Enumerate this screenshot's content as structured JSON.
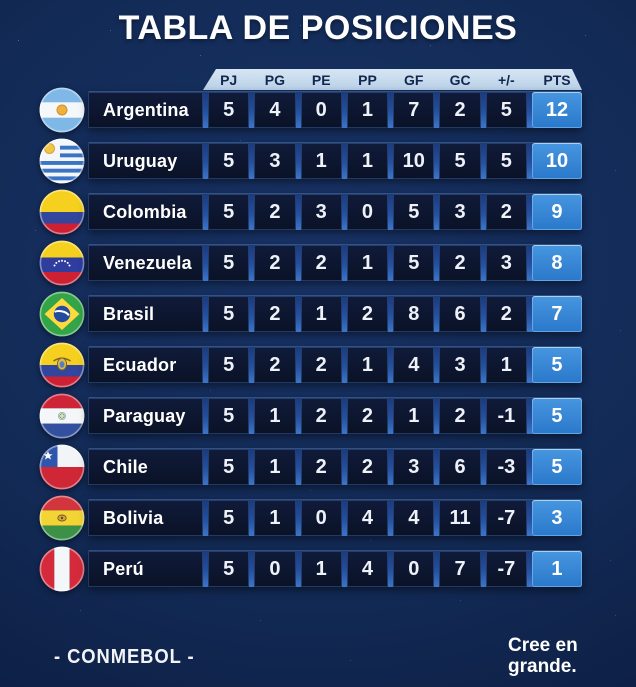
{
  "title": "TABLA DE POSICIONES",
  "chart_data": {
    "type": "table",
    "title": "TABLA DE POSICIONES",
    "columns": [
      "PJ",
      "PG",
      "PE",
      "PP",
      "GF",
      "GC",
      "+/-",
      "PTS"
    ],
    "rows": [
      {
        "team": "Argentina",
        "flag": "argentina",
        "values": [
          5,
          4,
          0,
          1,
          7,
          2,
          5
        ],
        "pts": 12
      },
      {
        "team": "Uruguay",
        "flag": "uruguay",
        "values": [
          5,
          3,
          1,
          1,
          10,
          5,
          5
        ],
        "pts": 10
      },
      {
        "team": "Colombia",
        "flag": "colombia",
        "values": [
          5,
          2,
          3,
          0,
          5,
          3,
          2
        ],
        "pts": 9
      },
      {
        "team": "Venezuela",
        "flag": "venezuela",
        "values": [
          5,
          2,
          2,
          1,
          5,
          2,
          3
        ],
        "pts": 8
      },
      {
        "team": "Brasil",
        "flag": "brasil",
        "values": [
          5,
          2,
          1,
          2,
          8,
          6,
          2
        ],
        "pts": 7
      },
      {
        "team": "Ecuador",
        "flag": "ecuador",
        "values": [
          5,
          2,
          2,
          1,
          4,
          3,
          1
        ],
        "pts": 5
      },
      {
        "team": "Paraguay",
        "flag": "paraguay",
        "values": [
          5,
          1,
          2,
          2,
          1,
          2,
          -1
        ],
        "pts": 5
      },
      {
        "team": "Chile",
        "flag": "chile",
        "values": [
          5,
          1,
          2,
          2,
          3,
          6,
          -3
        ],
        "pts": 5
      },
      {
        "team": "Bolivia",
        "flag": "bolivia",
        "values": [
          5,
          1,
          0,
          4,
          4,
          11,
          -7
        ],
        "pts": 3
      },
      {
        "team": "Perú",
        "flag": "peru",
        "values": [
          5,
          0,
          1,
          4,
          0,
          7,
          -7
        ],
        "pts": 1
      }
    ]
  },
  "footer": {
    "left": "- CONMEBOL -",
    "right_line1": "Cree en",
    "right_line2": "grande."
  },
  "colors": {
    "background": "#122a55",
    "header_band": "#c5d9ec",
    "cell_dark": "#0c1430",
    "points_blue": "#2e7fd0",
    "divider_blue": "#2a5cae",
    "text_light": "#ffffff",
    "header_text": "#14274e"
  }
}
